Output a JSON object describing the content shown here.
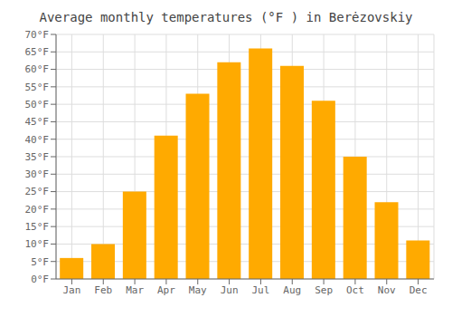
{
  "chart_data": {
    "type": "bar",
    "title": "Average monthly temperatures (°F ) in Berėzovskiy",
    "categories": [
      "Jan",
      "Feb",
      "Mar",
      "Apr",
      "May",
      "Jun",
      "Jul",
      "Aug",
      "Sep",
      "Oct",
      "Nov",
      "Dec"
    ],
    "values": [
      6,
      10,
      25,
      41,
      53,
      62,
      66,
      61,
      51,
      35,
      22,
      11
    ],
    "color": "#FFAA00",
    "ylim": [
      0,
      70
    ],
    "yticks": [
      {
        "value": 0,
        "label": "0°F"
      },
      {
        "value": 5,
        "label": "5°F"
      },
      {
        "value": 10,
        "label": "10°F"
      },
      {
        "value": 15,
        "label": "15°F"
      },
      {
        "value": 20,
        "label": "20°F"
      },
      {
        "value": 25,
        "label": "25°F"
      },
      {
        "value": 30,
        "label": "30°F"
      },
      {
        "value": 35,
        "label": "35°F"
      },
      {
        "value": 40,
        "label": "40°F"
      },
      {
        "value": 45,
        "label": "45°F"
      },
      {
        "value": 50,
        "label": "50°F"
      },
      {
        "value": 55,
        "label": "55°F"
      },
      {
        "value": 60,
        "label": "60°F"
      },
      {
        "value": 65,
        "label": "65°F"
      },
      {
        "value": 70,
        "label": "70°F"
      }
    ],
    "grid": true
  }
}
